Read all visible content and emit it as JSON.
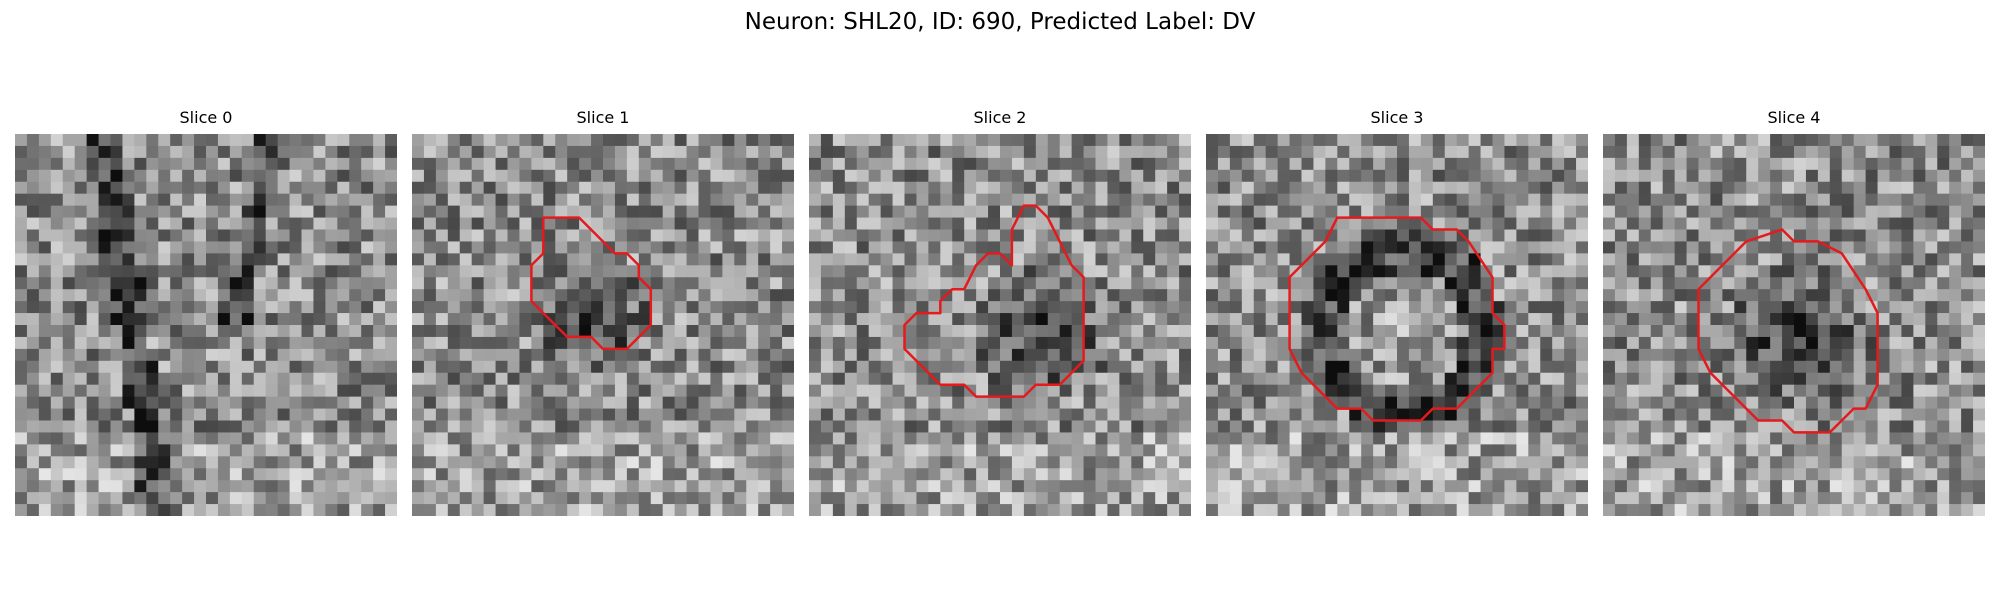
{
  "figure": {
    "title": "Neuron: SHL20, ID: 690, Predicted Label: DV"
  },
  "panels": [
    {
      "title": "Slice 0",
      "has_contour": false,
      "contour_color": "#e41a1c",
      "dark_blob": null
    },
    {
      "title": "Slice 1",
      "has_contour": true,
      "contour_color": "#e41a1c",
      "dark_blob": "center-low"
    },
    {
      "title": "Slice 2",
      "has_contour": true,
      "contour_color": "#e41a1c",
      "dark_blob": "right"
    },
    {
      "title": "Slice 3",
      "has_contour": true,
      "contour_color": "#e41a1c",
      "dark_blob": "ring"
    },
    {
      "title": "Slice 4",
      "has_contour": true,
      "contour_color": "#e41a1c",
      "dark_blob": "center"
    }
  ]
}
